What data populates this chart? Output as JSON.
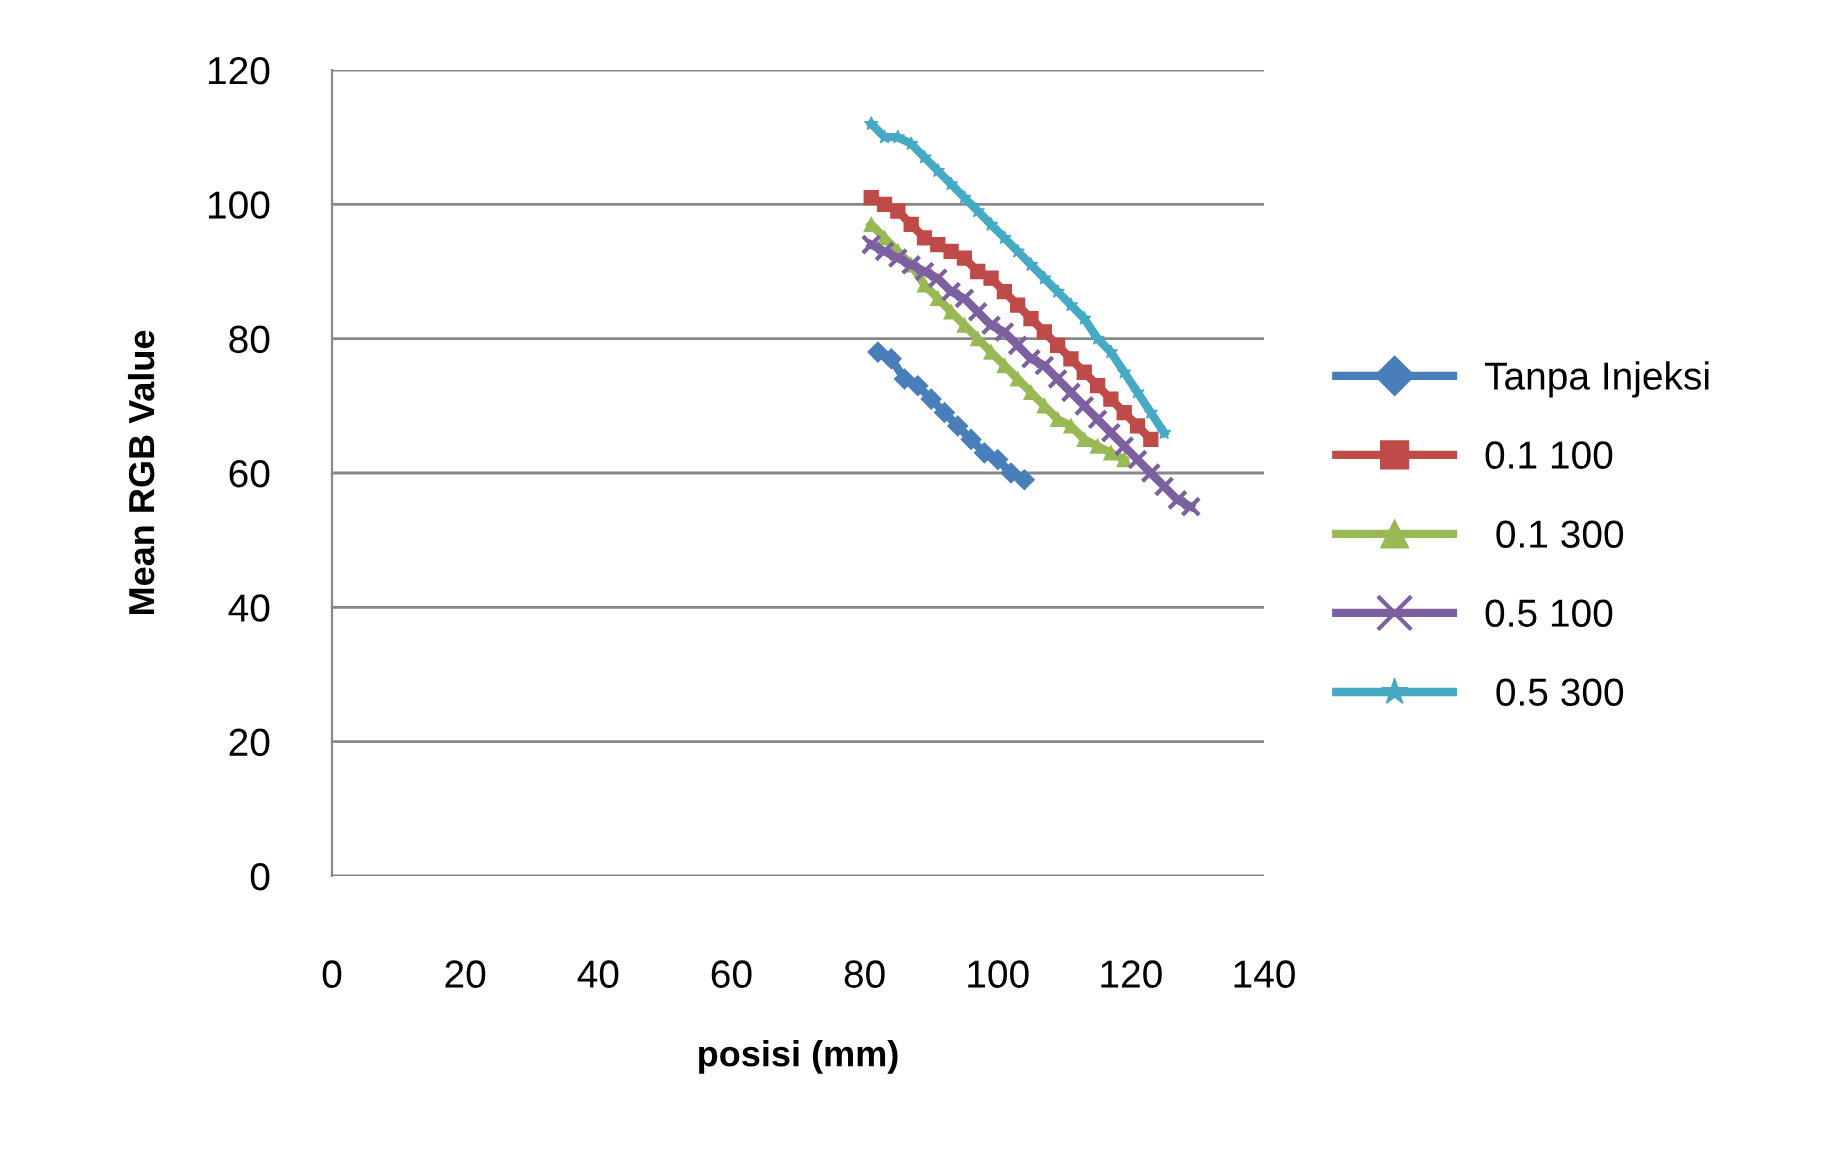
{
  "chart_data": {
    "type": "line",
    "xlabel": "posisi (mm)",
    "ylabel": "Mean RGB Value",
    "xlim": [
      0,
      140
    ],
    "xticks": [
      0,
      20,
      40,
      60,
      80,
      100,
      120,
      140
    ],
    "ylim": [
      0,
      120
    ],
    "yticks": [
      0,
      20,
      40,
      60,
      80,
      100,
      120
    ],
    "grid": "y",
    "legend": "right",
    "series": [
      {
        "name": "Tanpa Injeksi",
        "color": "#4a7ebb",
        "marker": "diamond",
        "x": [
          82,
          84,
          86,
          88,
          90,
          92,
          94,
          96,
          98,
          100,
          102,
          104
        ],
        "values": [
          78,
          77,
          74,
          73,
          71,
          69,
          67,
          65,
          63,
          62,
          60,
          59
        ]
      },
      {
        "name": "0.1 100",
        "color": "#be4b48",
        "marker": "square",
        "x": [
          81,
          83,
          85,
          87,
          89,
          91,
          93,
          95,
          97,
          99,
          101,
          103,
          105,
          107,
          109,
          111,
          113,
          115,
          117,
          119,
          121,
          123
        ],
        "values": [
          101,
          100,
          99,
          97,
          95,
          94,
          93,
          92,
          90,
          89,
          87,
          85,
          83,
          81,
          79,
          77,
          75,
          73,
          71,
          69,
          67,
          65
        ]
      },
      {
        "name": " 0.1 300",
        "color": "#98b954",
        "marker": "triangle",
        "x": [
          81,
          83,
          85,
          87,
          89,
          91,
          93,
          95,
          97,
          99,
          101,
          103,
          105,
          107,
          109,
          111,
          113,
          115,
          117,
          119
        ],
        "values": [
          97,
          95,
          93,
          91,
          88,
          86,
          84,
          82,
          80,
          78,
          76,
          74,
          72,
          70,
          68,
          67,
          65,
          64,
          63,
          62
        ]
      },
      {
        "name": "0.5 100",
        "color": "#7d60a0",
        "marker": "cross",
        "x": [
          81,
          83,
          85,
          87,
          89,
          91,
          93,
          95,
          97,
          99,
          101,
          103,
          105,
          107,
          109,
          111,
          113,
          115,
          117,
          119,
          121,
          123,
          125,
          127,
          129
        ],
        "values": [
          94,
          93,
          92,
          91,
          90,
          89,
          87,
          86,
          84,
          82,
          81,
          79,
          77,
          76,
          74,
          72,
          70,
          68,
          66,
          64,
          62,
          60,
          58,
          56,
          55
        ]
      },
      {
        "name": " 0.5 300",
        "color": "#46aac5",
        "marker": "star",
        "x": [
          81,
          83,
          85,
          87,
          89,
          91,
          93,
          95,
          97,
          99,
          101,
          103,
          105,
          107,
          109,
          111,
          113,
          115,
          117,
          119,
          121,
          123,
          125
        ],
        "values": [
          112,
          110,
          110,
          109,
          107,
          105,
          103,
          101,
          99,
          97,
          95,
          93,
          91,
          89,
          87,
          85,
          83,
          80,
          78,
          75,
          72,
          69,
          66
        ]
      }
    ]
  }
}
